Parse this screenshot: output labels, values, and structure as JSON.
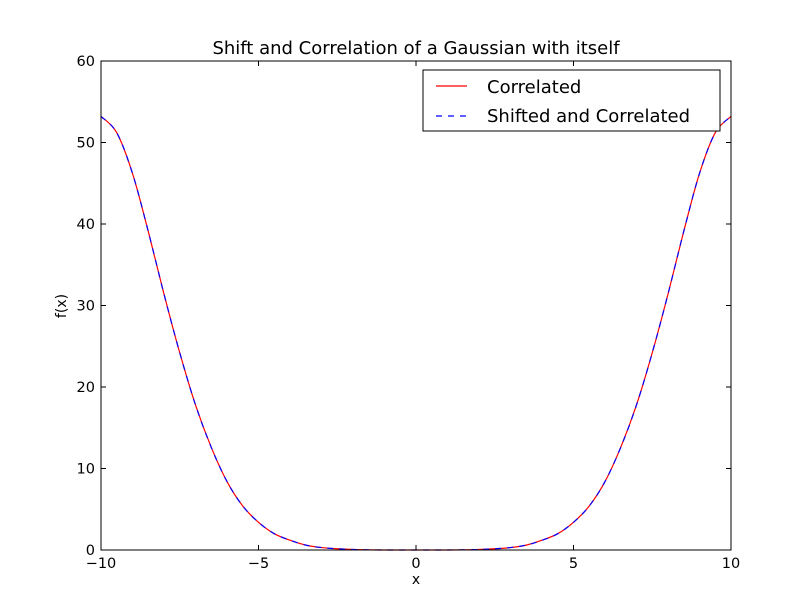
{
  "chart_data": {
    "type": "line",
    "title": "Shift and Correlation of a Gaussian with itself",
    "xlabel": "x",
    "ylabel": "f(x)",
    "xlim": [
      -10,
      10
    ],
    "ylim": [
      0,
      60
    ],
    "xticks": [
      -10,
      -5,
      0,
      5,
      10
    ],
    "xtick_labels": [
      "−10",
      "−5",
      "0",
      "5",
      "10"
    ],
    "yticks": [
      0,
      10,
      20,
      30,
      40,
      50,
      60
    ],
    "ytick_labels": [
      "0",
      "10",
      "20",
      "30",
      "40",
      "50",
      "60"
    ],
    "grid": false,
    "legend_position": "top-right",
    "x": [
      -10,
      -9.5,
      -9,
      -8.5,
      -8,
      -7.5,
      -7,
      -6.5,
      -6,
      -5.5,
      -5,
      -4.5,
      -4,
      -3.5,
      -3,
      -2.5,
      -2,
      -1.5,
      -1,
      -0.5,
      0,
      0.5,
      1,
      1.5,
      2,
      2.5,
      3,
      3.5,
      4,
      4.5,
      5,
      5.5,
      6,
      6.5,
      7,
      7.5,
      8,
      8.5,
      9,
      9.5,
      10
    ],
    "series": [
      {
        "name": "Correlated",
        "color": "#ff0000",
        "dash": "solid",
        "values": [
          53.2,
          51.2,
          46.2,
          39.1,
          31.4,
          24.2,
          17.8,
          12.6,
          8.4,
          5.4,
          3.4,
          2.0,
          1.2,
          0.6,
          0.3,
          0.15,
          0.06,
          0.02,
          0.0,
          0.0,
          0.0,
          0.0,
          0.0,
          0.02,
          0.06,
          0.15,
          0.3,
          0.6,
          1.2,
          2.0,
          3.4,
          5.4,
          8.4,
          12.6,
          17.8,
          24.2,
          31.4,
          39.1,
          46.2,
          51.2,
          53.2
        ]
      },
      {
        "name": "Shifted and Correlated",
        "color": "#0000ff",
        "dash": "dashed",
        "values": [
          53.2,
          51.2,
          46.2,
          39.1,
          31.4,
          24.2,
          17.8,
          12.6,
          8.4,
          5.4,
          3.4,
          2.0,
          1.2,
          0.6,
          0.3,
          0.15,
          0.06,
          0.02,
          0.0,
          0.0,
          0.0,
          0.0,
          0.0,
          0.02,
          0.06,
          0.15,
          0.3,
          0.6,
          1.2,
          2.0,
          3.4,
          5.4,
          8.4,
          12.6,
          17.8,
          24.2,
          31.4,
          39.1,
          46.2,
          51.2,
          53.2
        ]
      }
    ]
  }
}
